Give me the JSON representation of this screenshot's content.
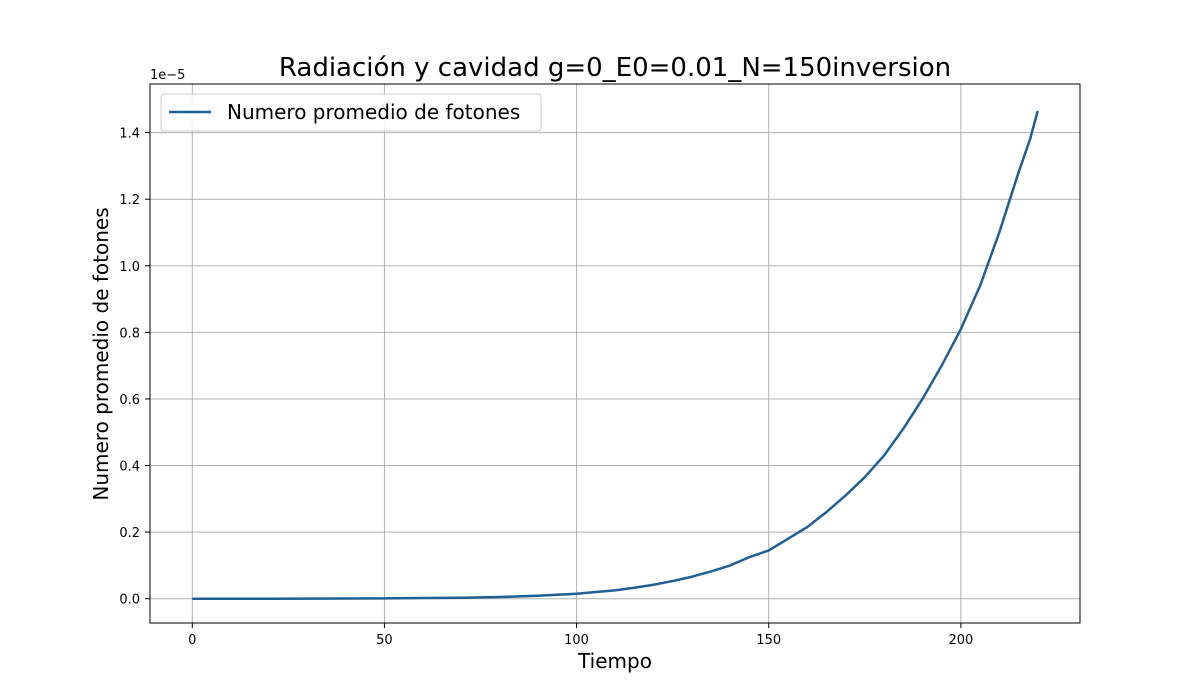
{
  "chart_data": {
    "type": "line",
    "title": "Radiación y cavidad g=0_E0=0.01_N=150inversion",
    "xlabel": "Tiempo",
    "ylabel": "Numero promedio de fotones",
    "y_offset_label": "1e−5",
    "y_scale_factor": 1e-05,
    "xlim": [
      -11,
      231
    ],
    "ylim": [
      -0.073,
      1.546
    ],
    "x_ticks": [
      0,
      50,
      100,
      150,
      200
    ],
    "x_tick_labels": [
      "0",
      "50",
      "100",
      "150",
      "200"
    ],
    "y_ticks": [
      0.0,
      0.2,
      0.4,
      0.6,
      0.8,
      1.0,
      1.2,
      1.4
    ],
    "y_tick_labels": [
      "0.0",
      "0.2",
      "0.4",
      "0.6",
      "0.8",
      "1.0",
      "1.2",
      "1.4"
    ],
    "grid": true,
    "legend_position": "upper-left",
    "series": [
      {
        "name": "Numero promedio de fotones",
        "color": "#1f5f94",
        "x": [
          0,
          20,
          40,
          50,
          60,
          70,
          75,
          80,
          85,
          90,
          95,
          100,
          105,
          110,
          115,
          120,
          125,
          130,
          135,
          140,
          145,
          150,
          155,
          160,
          165,
          170,
          175,
          180,
          185,
          190,
          195,
          200,
          205,
          210,
          215,
          218,
          220
        ],
        "y": [
          0.0,
          0.0,
          0.0005,
          0.001,
          0.002,
          0.003,
          0.004,
          0.005,
          0.007,
          0.009,
          0.012,
          0.015,
          0.02,
          0.025,
          0.033,
          0.042,
          0.053,
          0.066,
          0.082,
          0.1,
          0.125,
          0.145,
          0.18,
          0.215,
          0.26,
          0.31,
          0.365,
          0.43,
          0.51,
          0.6,
          0.7,
          0.81,
          0.94,
          1.1,
          1.28,
          1.38,
          1.465
        ]
      }
    ]
  }
}
